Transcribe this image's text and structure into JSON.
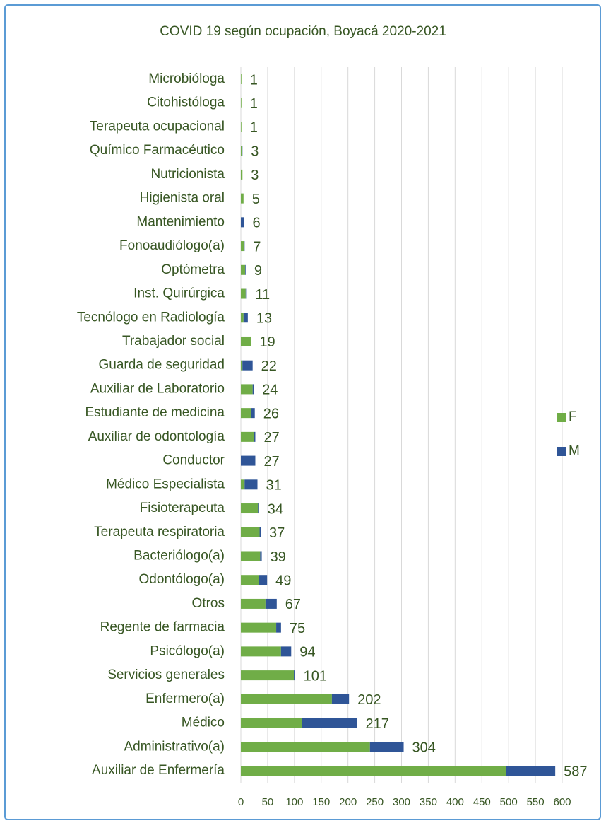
{
  "chart_data": {
    "type": "stacked_bar_horizontal",
    "title": "COVID 19 según ocupación, Boyacá 2020-2021",
    "categories": [
      "Microbióloga",
      "Citohistóloga",
      "Terapeuta ocupacional",
      "Químico Farmacéutico",
      "Nutricionista",
      "Higienista oral",
      "Mantenimiento",
      "Fonoaudiólogo(a)",
      "Optómetra",
      "Inst. Quirúrgica",
      "Tecnólogo en Radiología",
      "Trabajador social",
      "Guarda de seguridad",
      "Auxiliar de Laboratorio",
      "Estudiante de medicina",
      "Auxiliar de odontología",
      "Conductor",
      "Médico Especialista",
      "Fisioterapeuta",
      "Terapeuta respiratoria",
      "Bacteriólogo(a)",
      "Odontólogo(a)",
      "Otros",
      "Regente de farmacia",
      "Psicólogo(a)",
      "Servicios generales",
      "Enfermero(a)",
      "Médico",
      "Administrativo(a)",
      "Auxiliar de Enfermería"
    ],
    "series": [
      {
        "name": "F",
        "color": "#70ad47",
        "values": [
          1,
          1,
          1,
          2,
          3,
          5,
          0,
          6,
          8,
          9,
          5,
          19,
          3,
          22,
          19,
          25,
          0,
          7,
          32,
          35,
          36,
          34,
          46,
          66,
          75,
          99,
          170,
          114,
          241,
          495
        ]
      },
      {
        "name": "M",
        "color": "#2f5597",
        "values": [
          0,
          0,
          0,
          1,
          0,
          0,
          6,
          1,
          1,
          2,
          8,
          0,
          19,
          2,
          7,
          2,
          27,
          24,
          2,
          2,
          3,
          15,
          21,
          9,
          19,
          2,
          32,
          103,
          63,
          92
        ]
      }
    ],
    "totals": [
      1,
      1,
      1,
      3,
      3,
      5,
      6,
      7,
      9,
      11,
      13,
      19,
      22,
      24,
      26,
      27,
      27,
      31,
      34,
      37,
      39,
      49,
      67,
      75,
      94,
      101,
      202,
      217,
      304,
      587
    ],
    "xlim": [
      0,
      600
    ],
    "xticks": [
      0,
      50,
      100,
      150,
      200,
      250,
      300,
      350,
      400,
      450,
      500,
      550,
      600
    ],
    "grid": true,
    "legend": "right"
  }
}
